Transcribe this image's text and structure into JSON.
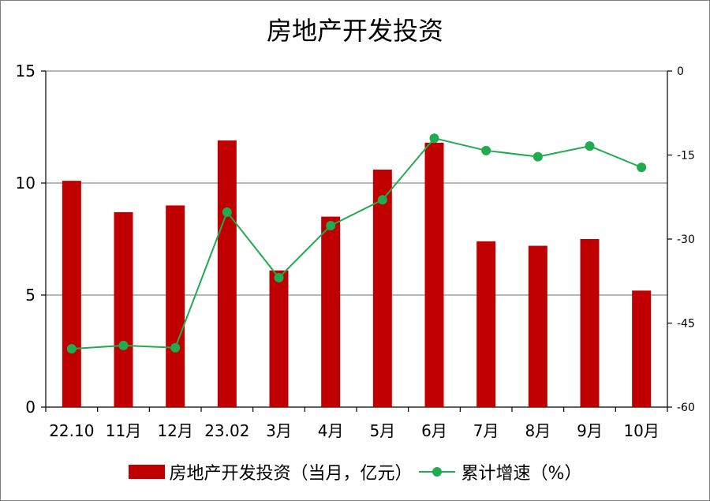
{
  "chart_data": {
    "type": "bar+line",
    "title": "房地产开发投资",
    "categories": [
      "22.10",
      "11月",
      "12月",
      "23.02",
      "3月",
      "4月",
      "5月",
      "6月",
      "7月",
      "8月",
      "9月",
      "10月"
    ],
    "series": [
      {
        "name": "房地产开发投资（当月，亿元）",
        "type": "bar",
        "axis": "left",
        "color": "#c00000",
        "values": [
          10.1,
          8.7,
          9.0,
          11.9,
          6.1,
          8.5,
          10.6,
          11.8,
          7.4,
          7.2,
          7.5,
          5.2
        ]
      },
      {
        "name": "累计增速（%）",
        "type": "line",
        "axis": "right",
        "color": "#1fab4e",
        "values": [
          -49.6,
          -49.0,
          -49.4,
          -25.2,
          -36.9,
          -27.6,
          -23.0,
          -12.0,
          -14.2,
          -15.3,
          -13.4,
          -17.2
        ]
      }
    ],
    "y_left": {
      "min": 0,
      "max": 15,
      "ticks": [
        0,
        5,
        10,
        15
      ]
    },
    "y_right": {
      "min": -60,
      "max": 0,
      "ticks": [
        0,
        -15,
        -30,
        -45,
        -60
      ]
    },
    "grid": "horizontal",
    "legend": "bottom"
  }
}
